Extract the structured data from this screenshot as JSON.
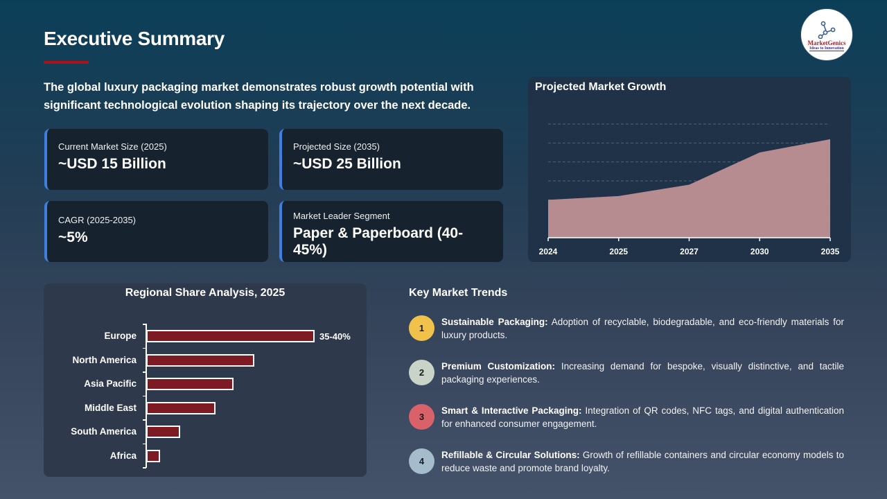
{
  "header": {
    "title": "Executive Summary",
    "intro": "The global luxury packaging market demonstrates robust growth potential with significant technological evolution shaping its trajectory over the next decade.",
    "logo": {
      "name": "MarketGenics",
      "tagline": "Ideas to Innovation",
      "icon": "molecule-network-icon"
    },
    "accent_color": "#b0101a"
  },
  "stats": [
    {
      "label": "Current Market Size (2025)",
      "value": "~USD 15 Billion"
    },
    {
      "label": "Projected Size (2035)",
      "value": "~USD 25 Billion"
    },
    {
      "label": "CAGR (2025-2035)",
      "value": "~5%"
    },
    {
      "label": "Market Leader Segment",
      "value": "Paper & Paperboard (40-45%)"
    }
  ],
  "chart_data": [
    {
      "type": "area",
      "title": "Projected Market Growth",
      "categories": [
        "2024",
        "2025",
        "2027",
        "2030",
        "2035"
      ],
      "values": [
        2.0,
        2.2,
        2.8,
        4.5,
        5.2
      ],
      "value_note": "relative heights in gridline units; no y-axis labels shown",
      "xlabel": "",
      "ylabel": "",
      "grid": "horizontal dashed",
      "ylim": [
        0,
        6
      ],
      "color": "#bc9094"
    },
    {
      "type": "bar",
      "orientation": "horizontal",
      "title": "Regional Share Analysis, 2025",
      "categories": [
        "Europe",
        "North America",
        "Asia Pacific",
        "Middle East",
        "South America",
        "Africa"
      ],
      "values": [
        37.5,
        24,
        19.5,
        15.5,
        7.5,
        3
      ],
      "data_labels": [
        "35-40%",
        "",
        "",
        "",
        "",
        ""
      ],
      "color": "#7d1a24"
    }
  ],
  "trends": {
    "title": "Key Market Trends",
    "items": [
      {
        "num": "1",
        "color": "#f0c24b",
        "heading": "Sustainable Packaging:",
        "text": " Adoption of recyclable, biodegradable, and eco-friendly materials for luxury products."
      },
      {
        "num": "2",
        "color": "#c9d3c8",
        "heading": "Premium Customization:",
        "text": " Increasing demand for bespoke, visually distinctive, and tactile packaging experiences."
      },
      {
        "num": "3",
        "color": "#d9626a",
        "heading": "Smart & Interactive Packaging:",
        "text": " Integration of QR codes, NFC tags, and digital authentication for enhanced consumer engagement."
      },
      {
        "num": "4",
        "color": "#a4bccb",
        "heading": "Refillable & Circular Solutions:",
        "text": " Growth of refillable containers and circular economy models to reduce waste and promote brand loyalty."
      }
    ]
  }
}
